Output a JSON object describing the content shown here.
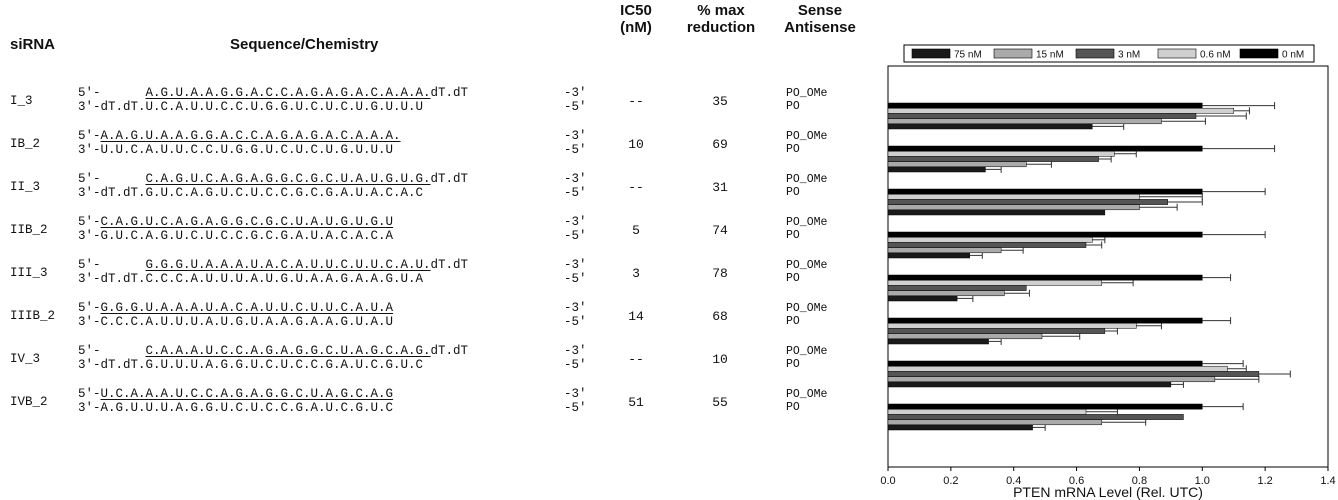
{
  "headers": {
    "sirna": "siRNA",
    "sequence": "Sequence/Chemistry",
    "ic50_line1": "IC50",
    "ic50_line2": "(nM)",
    "maxred_line1": "% max",
    "maxred_line2": "reduction",
    "sense_line1": "Sense",
    "sense_line2": "Antisense"
  },
  "rows": [
    {
      "name": "I_3",
      "p5": "5'-",
      "p3": "3'-dT.dT.",
      "top": "A.G.U.A.A.G.G.A.C.C.A.G.A.G.A.C.A.A.A.",
      "topsfx": "dT.dT",
      "bot": "U.C.A.U.U.C.C.U.G.G.U.C.U.C.U.G.U.U.U",
      "end_top": "-3'",
      "end_bot": "-5'",
      "ic50": "--",
      "maxred": "35",
      "sense": "PO_OMe",
      "antisense": "PO"
    },
    {
      "name": "IB_2",
      "p5": "5'-",
      "p3": "3'-",
      "top": "A.A.G.U.A.A.G.G.A.C.C.A.G.A.G.A.C.A.A.A.",
      "topsfx": "",
      "bot": "U.U.C.A.U.U.C.C.U.G.G.U.C.U.C.U.G.U.U.U",
      "end_top": "-3'",
      "end_bot": "-5'",
      "ic50": "10",
      "maxred": "69",
      "sense": "PO_OMe",
      "antisense": "PO"
    },
    {
      "name": "II_3",
      "p5": "5'-",
      "p3": "3'-dT.dT.",
      "top": "C.A.G.U.C.A.G.A.G.G.C.G.C.U.A.U.G.U.G.",
      "topsfx": "dT.dT",
      "bot": "G.U.C.A.G.U.C.U.C.C.G.C.G.A.U.A.C.A.C",
      "end_top": "-3'",
      "end_bot": "-5'",
      "ic50": "--",
      "maxred": "31",
      "sense": "PO_OMe",
      "antisense": "PO"
    },
    {
      "name": "IIB_2",
      "p5": "5'-",
      "p3": "3'-",
      "top": "C.A.G.U.C.A.G.A.G.G.C.G.C.U.A.U.G.U.G.U",
      "topsfx": "",
      "bot": "G.U.C.A.G.U.C.U.C.C.G.C.G.A.U.A.C.A.C.A",
      "end_top": "-3'",
      "end_bot": "-5'",
      "ic50": "5",
      "maxred": "74",
      "sense": "PO_OMe",
      "antisense": "PO"
    },
    {
      "name": "III_3",
      "p5": "5'-",
      "p3": "3'-dT.dT.",
      "top": "G.G.G.U.A.A.A.U.A.C.A.U.U.C.U.U.C.A.U.",
      "topsfx": "dT.dT",
      "bot": "C.C.C.A.U.U.U.A.U.G.U.A.A.G.A.A.G.U.A",
      "end_top": "-3'",
      "end_bot": "-5'",
      "ic50": "3",
      "maxred": "78",
      "sense": "PO_OMe",
      "antisense": "PO"
    },
    {
      "name": "IIIB_2",
      "p5": "5'-",
      "p3": "3'-",
      "top": "G.G.G.U.A.A.A.U.A.C.A.U.U.C.U.U.C.A.U.A",
      "topsfx": "",
      "bot": "C.C.C.A.U.U.U.A.U.G.U.A.A.G.A.A.G.U.A.U",
      "end_top": "-3'",
      "end_bot": "-5'",
      "ic50": "14",
      "maxred": "68",
      "sense": "PO_OMe",
      "antisense": "PO"
    },
    {
      "name": "IV_3",
      "p5": "5'-",
      "p3": "3'-dT.dT.",
      "top": "C.A.A.A.U.C.C.A.G.A.G.G.C.U.A.G.C.A.G.",
      "topsfx": "dT.dT",
      "bot": "G.U.U.U.A.G.G.U.C.U.C.C.G.A.U.C.G.U.C",
      "end_top": "-3'",
      "end_bot": "-5'",
      "ic50": "--",
      "maxred": "10",
      "sense": "PO_OMe",
      "antisense": "PO"
    },
    {
      "name": "IVB_2",
      "p5": "5'-",
      "p3": "3'-",
      "top": "U.C.A.A.A.U.C.C.A.G.A.G.G.C.U.A.G.C.A.G",
      "topsfx": "",
      "bot": "A.G.U.U.U.A.G.G.U.C.U.C.C.G.A.U.C.G.U.C",
      "end_top": "-3'",
      "end_bot": "-5'",
      "ic50": "51",
      "maxred": "55",
      "sense": "PO_OMe",
      "antisense": "PO"
    }
  ],
  "chart_data": {
    "type": "bar",
    "orientation": "horizontal",
    "title": "",
    "xlabel": "PTEN mRNA Level (Rel. UTC)",
    "ylabel": "",
    "xlim": [
      0,
      1.4
    ],
    "xticks": [
      "0.0",
      "0.2",
      "0.4",
      "0.6",
      "0.8",
      "1.0",
      "1.2",
      "1.4"
    ],
    "legend_position": "top",
    "grid": false,
    "categories": [
      "I_3",
      "IB_2",
      "II_3",
      "IIB_2",
      "III_3",
      "IIIB_2",
      "IV_3",
      "IVB_2"
    ],
    "series": [
      {
        "name": "75 nM",
        "color": "#1a1a1a",
        "values": [
          0.65,
          0.31,
          0.69,
          0.26,
          0.22,
          0.32,
          0.9,
          0.46
        ]
      },
      {
        "name": "15 nM",
        "color": "#aaaaaa",
        "values": [
          0.87,
          0.44,
          0.8,
          0.36,
          0.37,
          0.49,
          1.04,
          0.68
        ]
      },
      {
        "name": "3 nM",
        "color": "#555555",
        "values": [
          0.98,
          0.67,
          0.89,
          0.63,
          0.44,
          0.69,
          1.18,
          0.94
        ]
      },
      {
        "name": "0.6 nM",
        "color": "#d0d0d0",
        "values": [
          1.1,
          0.72,
          0.8,
          0.65,
          0.68,
          0.79,
          1.08,
          0.63
        ]
      },
      {
        "name": "0 nM",
        "color": "#000000",
        "values": [
          1.0,
          1.0,
          1.0,
          1.0,
          1.0,
          1.0,
          1.0,
          1.0
        ]
      }
    ],
    "errors": [
      [
        0.1,
        0.05,
        0.0,
        0.04,
        0.05,
        0.04,
        0.04,
        0.04
      ],
      [
        0.14,
        0.08,
        0.12,
        0.07,
        0.08,
        0.12,
        0.14,
        0.14
      ],
      [
        0.16,
        0.04,
        0.11,
        0.05,
        0.0,
        0.04,
        0.1,
        0.0
      ],
      [
        0.05,
        0.07,
        0.2,
        0.04,
        0.1,
        0.08,
        0.06,
        0.1
      ],
      [
        0.23,
        0.23,
        0.2,
        0.2,
        0.09,
        0.09,
        0.13,
        0.13
      ]
    ]
  }
}
